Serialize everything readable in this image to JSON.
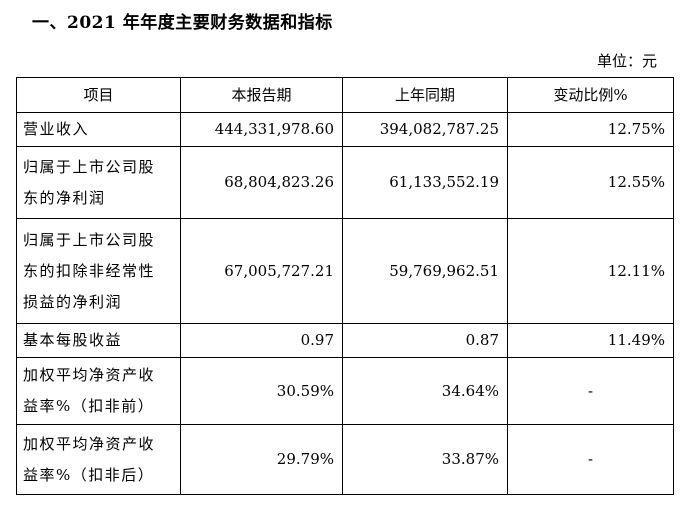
{
  "heading": "一、2021 年年度主要财务数据和指标",
  "unit": "单位：元",
  "table": {
    "headers": [
      "项目",
      "本报告期",
      "上年同期",
      "变动比例%"
    ],
    "rows": [
      {
        "item": [
          "营业收入"
        ],
        "current": "444,331,978.60",
        "previous": "394,082,787.25",
        "change": "12.75%"
      },
      {
        "item": [
          "归属于上市公司股",
          "东的净利润"
        ],
        "current": "68,804,823.26",
        "previous": "61,133,552.19",
        "change": "12.55%"
      },
      {
        "item": [
          "归属于上市公司股",
          "东的扣除非经常性",
          "损益的净利润"
        ],
        "current": "67,005,727.21",
        "previous": "59,769,962.51",
        "change": "12.11%"
      },
      {
        "item": [
          "基本每股收益"
        ],
        "current": "0.97",
        "previous": "0.87",
        "change": "11.49%"
      },
      {
        "item": [
          "加权平均净资产收",
          "益率%（扣非前）"
        ],
        "current": "30.59%",
        "previous": "34.64%",
        "change": "-"
      },
      {
        "item": [
          "加权平均净资产收",
          "益率%（扣非后）"
        ],
        "current": "29.79%",
        "previous": "33.87%",
        "change": "-"
      }
    ]
  }
}
